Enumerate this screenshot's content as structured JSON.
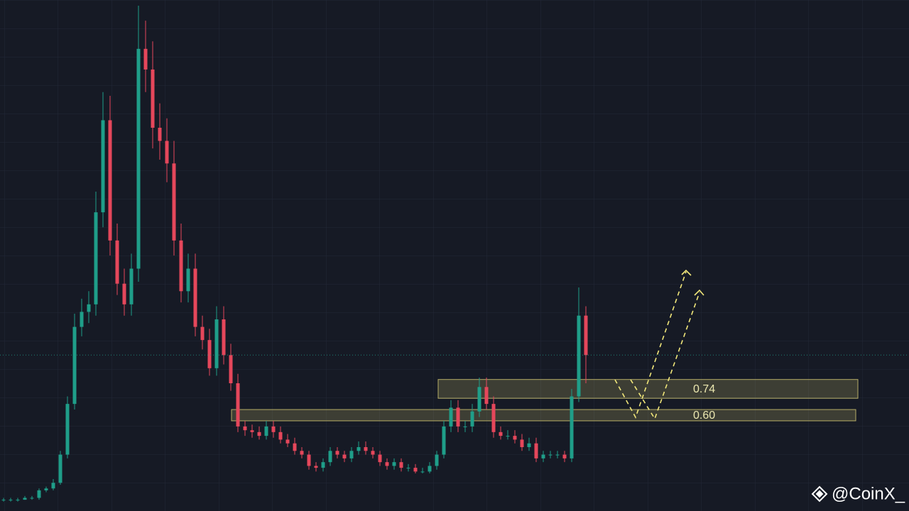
{
  "chart_data": {
    "type": "candlestick",
    "ylim": [
      0.09,
      2.81
    ],
    "up_color": "#1f9e89",
    "down_color": "#e5475b",
    "open": [
      0.15,
      0.15,
      0.15,
      0.15,
      0.16,
      0.16,
      0.2,
      0.21,
      0.24,
      0.39,
      0.66,
      1.07,
      1.15,
      1.19,
      1.68,
      2.17,
      1.53,
      1.3,
      1.19,
      1.38,
      2.55,
      2.44,
      2.13,
      2.06,
      1.94,
      1.53,
      1.26,
      1.38,
      1.07,
      1.0,
      0.85,
      1.11,
      0.92,
      0.77,
      0.54,
      0.52,
      0.51,
      0.49,
      0.54,
      0.51,
      0.47,
      0.45,
      0.41,
      0.39,
      0.33,
      0.32,
      0.35,
      0.41,
      0.39,
      0.37,
      0.41,
      0.43,
      0.41,
      0.39,
      0.35,
      0.33,
      0.35,
      0.32,
      0.32,
      0.3,
      0.3,
      0.33,
      0.39,
      0.54,
      0.64,
      0.54,
      0.54,
      0.62,
      0.75,
      0.66,
      0.51,
      0.49,
      0.49,
      0.47,
      0.43,
      0.45,
      0.37,
      0.39,
      0.39,
      0.39,
      0.37,
      0.7,
      1.13
    ],
    "high": [
      0.16,
      0.16,
      0.16,
      0.17,
      0.17,
      0.21,
      0.22,
      0.26,
      0.41,
      0.7,
      1.14,
      1.22,
      1.26,
      1.79,
      2.32,
      2.3,
      1.62,
      1.38,
      1.46,
      2.78,
      2.7,
      2.59,
      2.26,
      2.18,
      2.06,
      1.62,
      1.46,
      1.46,
      1.13,
      1.06,
      1.18,
      1.18,
      0.98,
      0.82,
      0.57,
      0.55,
      0.54,
      0.57,
      0.57,
      0.54,
      0.5,
      0.48,
      0.43,
      0.41,
      0.35,
      0.37,
      0.43,
      0.43,
      0.41,
      0.43,
      0.46,
      0.46,
      0.43,
      0.41,
      0.37,
      0.37,
      0.37,
      0.34,
      0.34,
      0.32,
      0.35,
      0.41,
      0.57,
      0.68,
      0.68,
      0.57,
      0.66,
      0.8,
      0.8,
      0.7,
      0.54,
      0.52,
      0.52,
      0.5,
      0.48,
      0.48,
      0.41,
      0.41,
      0.41,
      0.41,
      0.74,
      1.28,
      1.18
    ],
    "low": [
      0.14,
      0.14,
      0.14,
      0.15,
      0.15,
      0.15,
      0.19,
      0.2,
      0.23,
      0.37,
      0.63,
      1.02,
      1.09,
      1.13,
      1.6,
      1.45,
      1.24,
      1.13,
      1.13,
      1.31,
      2.32,
      2.02,
      1.96,
      1.84,
      1.45,
      1.2,
      1.2,
      1.02,
      0.95,
      0.81,
      0.81,
      0.87,
      0.73,
      0.51,
      0.49,
      0.48,
      0.47,
      0.47,
      0.48,
      0.45,
      0.43,
      0.39,
      0.37,
      0.31,
      0.3,
      0.3,
      0.33,
      0.37,
      0.35,
      0.35,
      0.39,
      0.39,
      0.37,
      0.33,
      0.31,
      0.31,
      0.3,
      0.3,
      0.29,
      0.29,
      0.29,
      0.31,
      0.37,
      0.51,
      0.51,
      0.51,
      0.51,
      0.59,
      0.63,
      0.48,
      0.47,
      0.47,
      0.45,
      0.41,
      0.41,
      0.35,
      0.35,
      0.37,
      0.37,
      0.35,
      0.35,
      0.67,
      0.77
    ],
    "close": [
      0.15,
      0.15,
      0.15,
      0.16,
      0.16,
      0.2,
      0.21,
      0.24,
      0.39,
      0.66,
      1.07,
      1.15,
      1.19,
      1.68,
      2.17,
      1.53,
      1.3,
      1.19,
      1.38,
      2.55,
      2.44,
      2.13,
      2.06,
      1.94,
      1.53,
      1.26,
      1.38,
      1.07,
      1.0,
      0.85,
      1.11,
      0.92,
      0.77,
      0.54,
      0.52,
      0.51,
      0.49,
      0.54,
      0.51,
      0.47,
      0.45,
      0.41,
      0.39,
      0.33,
      0.32,
      0.35,
      0.41,
      0.39,
      0.37,
      0.41,
      0.43,
      0.41,
      0.39,
      0.35,
      0.33,
      0.35,
      0.32,
      0.32,
      0.3,
      0.3,
      0.33,
      0.39,
      0.54,
      0.64,
      0.54,
      0.54,
      0.62,
      0.75,
      0.66,
      0.51,
      0.49,
      0.49,
      0.47,
      0.43,
      0.45,
      0.37,
      0.39,
      0.39,
      0.39,
      0.37,
      0.7,
      1.13,
      0.92
    ],
    "zones": [
      {
        "label": "0.74",
        "low": 0.69,
        "high": 0.79
      },
      {
        "label": "0.60",
        "low": 0.57,
        "high": 0.63
      }
    ],
    "watermark": "@CoinX_"
  }
}
